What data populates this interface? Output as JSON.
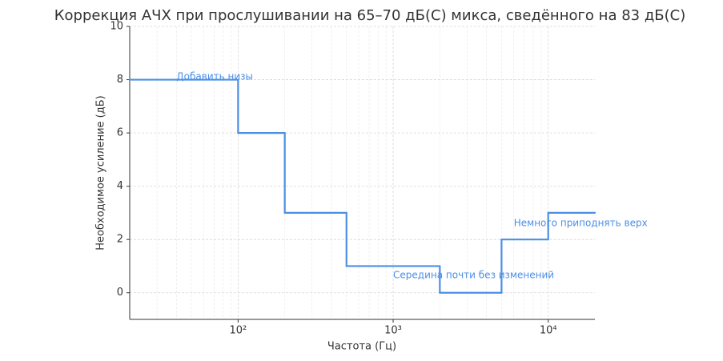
{
  "chart_data": {
    "type": "step",
    "title": "Коррекция АЧХ при прослушивании на 65–70 дБ(С) микса, сведённого на 83 дБ(С)",
    "x_label": "Частота (Гц)",
    "y_label": "Необходимое усиление (дБ)",
    "x": [
      20,
      100,
      200,
      500,
      2000,
      5000,
      10000
    ],
    "values": [
      8,
      6,
      3,
      1,
      0,
      2,
      3
    ],
    "color": "#4a8fe7",
    "xscale": "log",
    "xlim": [
      20,
      20000
    ],
    "xticks": [
      {
        "value": 100,
        "label": "10²"
      },
      {
        "value": 1000,
        "label": "10³"
      },
      {
        "value": 10000,
        "label": "10⁴"
      }
    ],
    "ylim": [
      -1,
      10
    ],
    "yticks": [
      0,
      2,
      4,
      6,
      8,
      10
    ],
    "grid": true,
    "annotations": [
      {
        "text": "Добавить низы",
        "x": 40,
        "y": 8.1
      },
      {
        "text": "Середина почти без изменений",
        "x": 1000,
        "y": 0.65
      },
      {
        "text": "Немного приподнять верх",
        "x": 6000,
        "y": 2.6
      }
    ]
  }
}
